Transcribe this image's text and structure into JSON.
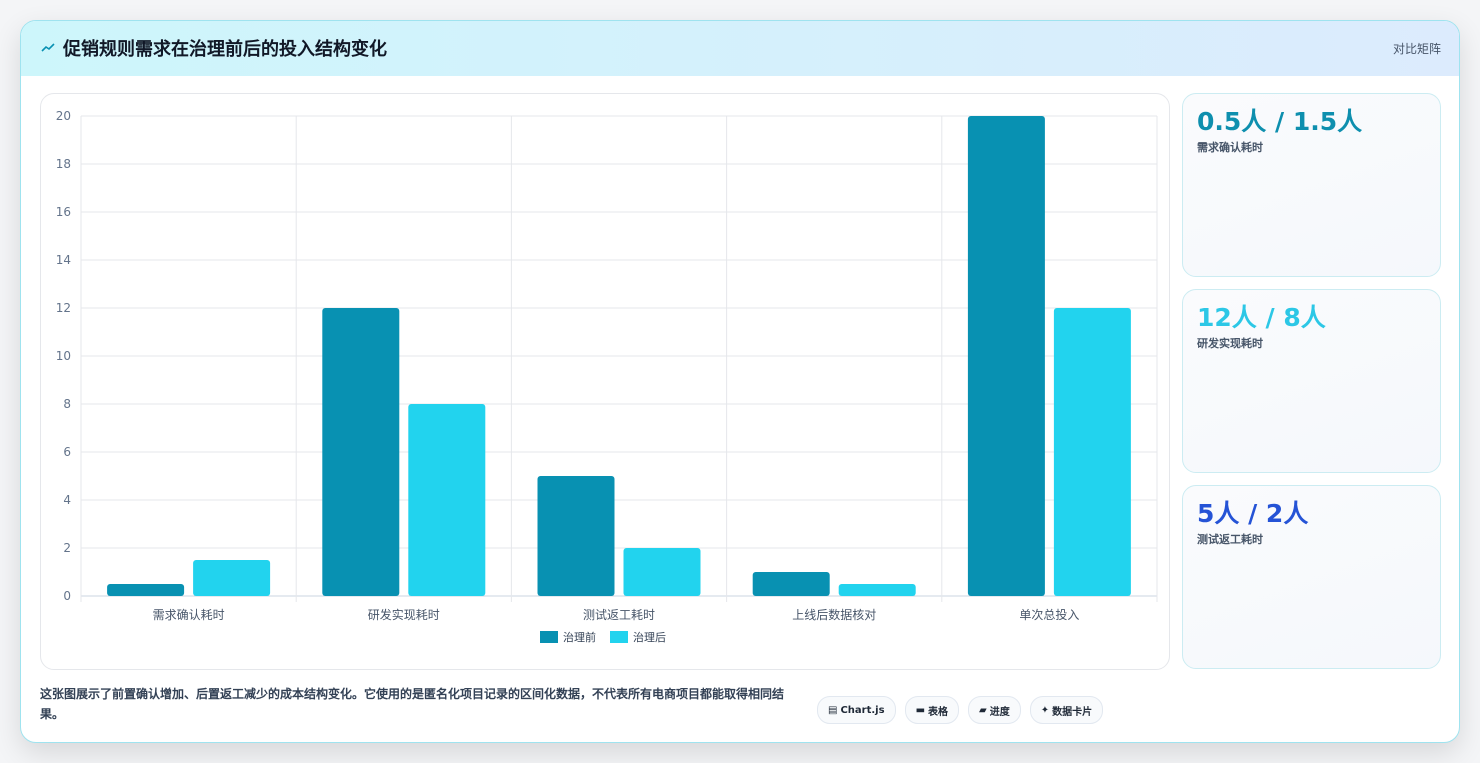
{
  "header": {
    "title": "促销规则需求在治理前后的投入结构变化",
    "icon": "trend-icon",
    "action_label": "对比矩阵"
  },
  "colors": {
    "before": "#0891b2",
    "after": "#22d3ee",
    "stat1": "#0e8fae",
    "stat2": "#2cc7e6",
    "stat3": "#2553d6"
  },
  "chart_data": {
    "type": "bar",
    "categories": [
      "需求确认耗时",
      "研发实现耗时",
      "测试返工耗时",
      "上线后数据核对",
      "单次总投入"
    ],
    "series": [
      {
        "name": "治理前",
        "values": [
          0.5,
          12,
          5,
          1,
          20
        ]
      },
      {
        "name": "治理后",
        "values": [
          1.5,
          8,
          2,
          0.5,
          12
        ]
      }
    ],
    "y_ticks": [
      "0",
      "2",
      "4",
      "6",
      "8",
      "10",
      "12",
      "14",
      "16",
      "18",
      "20"
    ],
    "ylim": [
      0,
      20
    ],
    "grid": true,
    "legend": "bottom-center"
  },
  "stats": [
    {
      "value": "0.5人 / 1.5人",
      "label": "需求确认耗时"
    },
    {
      "value": "12人 / 8人",
      "label": "研发实现耗时"
    },
    {
      "value": "5人 / 2人",
      "label": "测试返工耗时"
    }
  ],
  "footer": {
    "description": "这张图展示了前置确认增加、后置返工减少的成本结构变化。它使用的是匿名化项目记录的区间化数据，不代表所有电商项目都能取得相同结果。",
    "chips": [
      {
        "icon": "chart-icon",
        "glyph": "▤",
        "label": "Chart.js"
      },
      {
        "icon": "table-icon",
        "glyph": "▬",
        "label": "表格"
      },
      {
        "icon": "progress-icon",
        "glyph": "▰",
        "label": "进度"
      },
      {
        "icon": "sparkle-icon",
        "glyph": "✦",
        "label": "数据卡片"
      }
    ]
  }
}
